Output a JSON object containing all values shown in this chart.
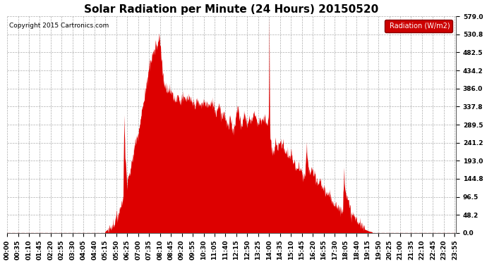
{
  "title": "Solar Radiation per Minute (24 Hours) 20150520",
  "copyright_text": "Copyright 2015 Cartronics.com",
  "legend_label": "Radiation (W/m2)",
  "y_ticks": [
    0.0,
    48.2,
    96.5,
    144.8,
    193.0,
    241.2,
    289.5,
    337.8,
    386.0,
    434.2,
    482.5,
    530.8,
    579.0
  ],
  "ylim": [
    0.0,
    579.0
  ],
  "background_color": "#ffffff",
  "plot_bg_color": "#ffffff",
  "fill_color": "#dd0000",
  "grid_color": "#999999",
  "dashed_zero_color": "#dd0000",
  "title_fontsize": 11,
  "tick_fontsize": 6.5,
  "legend_bg": "#cc0000",
  "legend_text_color": "#ffffff",
  "x_tick_step_minutes": 35,
  "n_minutes": 1440
}
